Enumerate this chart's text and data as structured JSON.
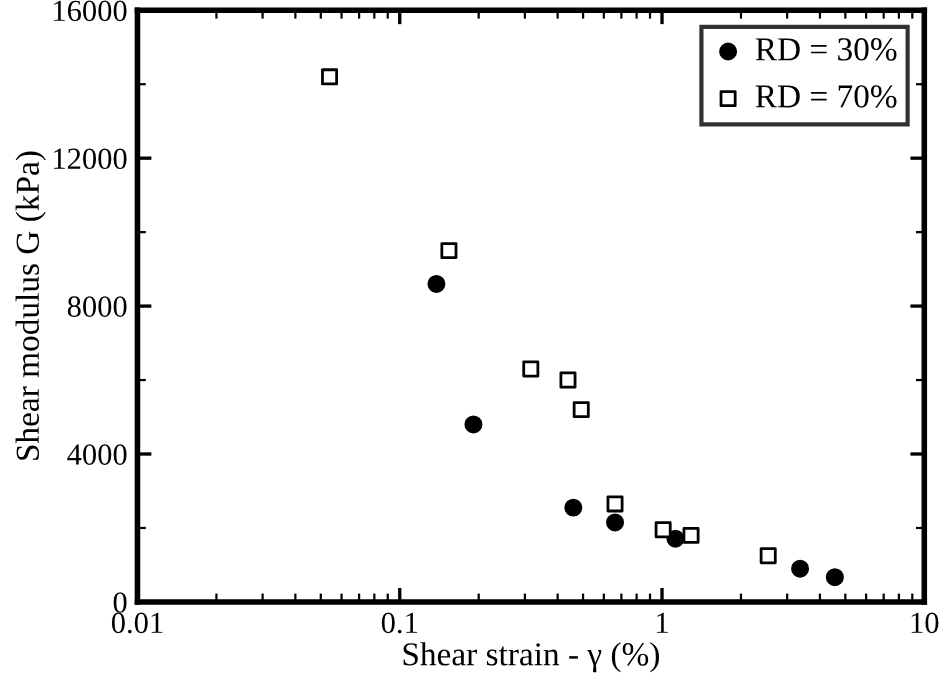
{
  "chart_data": {
    "type": "scatter",
    "xlabel": "Shear strain - γ (%)",
    "ylabel": "Shear modulus G (kPa)",
    "log": "x",
    "xlim": [
      0.01,
      10
    ],
    "xticks": [
      0.01,
      0.1,
      1,
      10
    ],
    "ylim": [
      0,
      16000
    ],
    "yticks": [
      0,
      4000,
      8000,
      12000,
      16000
    ],
    "legend": "top right",
    "grid": false,
    "series": [
      {
        "name": "RD = 30%",
        "color": "#000000",
        "marker": "circle",
        "x": [
          0.138,
          0.191,
          0.459,
          0.662,
          1.125,
          3.36,
          4.56
        ],
        "values": [
          8600,
          4800,
          2550,
          2150,
          1710,
          900,
          670
        ]
      },
      {
        "name": "RD = 70%",
        "color": "#000000",
        "marker": "square",
        "x": [
          0.054,
          0.154,
          0.316,
          0.438,
          0.492,
          0.662,
          1.01,
          1.29,
          2.54
        ],
        "values": [
          14200,
          9500,
          6300,
          6000,
          5200,
          2650,
          1950,
          1800,
          1250
        ]
      }
    ]
  }
}
